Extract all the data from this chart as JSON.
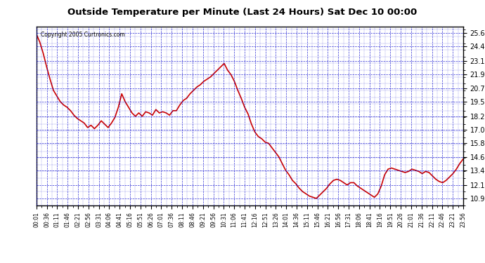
{
  "title": "Outside Temperature per Minute (Last 24 Hours) Sat Dec 10 00:00",
  "copyright_text": "Copyright 2005 Curtronics.com",
  "background_color": "#0000aa",
  "plot_bg_color": "#ffffff",
  "line_color": "#cc0000",
  "grid_color": "#0000cc",
  "y_ticks": [
    10.9,
    12.1,
    13.4,
    14.6,
    15.8,
    17.0,
    18.2,
    19.5,
    20.7,
    21.9,
    23.1,
    24.4,
    25.6
  ],
  "y_min": 10.3,
  "y_max": 26.2,
  "x_tick_labels": [
    "00:01",
    "00:36",
    "01:11",
    "01:46",
    "02:21",
    "02:56",
    "03:31",
    "04:06",
    "04:41",
    "05:16",
    "05:51",
    "06:26",
    "07:01",
    "07:36",
    "08:11",
    "08:46",
    "09:21",
    "09:56",
    "10:31",
    "11:06",
    "11:41",
    "12:16",
    "12:51",
    "13:26",
    "14:01",
    "14:36",
    "15:11",
    "15:46",
    "16:21",
    "16:56",
    "17:31",
    "18:06",
    "18:41",
    "19:16",
    "19:51",
    "20:26",
    "21:01",
    "21:36",
    "22:11",
    "22:46",
    "23:21",
    "23:56"
  ],
  "data_x": [
    0,
    35,
    70,
    105,
    140,
    175,
    210,
    245,
    280,
    315,
    350,
    385,
    420,
    455,
    490,
    525,
    560,
    595,
    630,
    665,
    700,
    735,
    770,
    805,
    840,
    875,
    910,
    945,
    980,
    1015,
    1050,
    1085,
    1120,
    1155,
    1190,
    1225,
    1260,
    1295,
    1330,
    1365,
    1400,
    1435
  ],
  "data_y": [
    25.5,
    24.8,
    23.8,
    22.6,
    21.5,
    20.5,
    20.0,
    19.5,
    19.2,
    19.0,
    18.7,
    18.3,
    18.0,
    17.8,
    17.6,
    17.2,
    17.4,
    17.1,
    17.4,
    17.8,
    17.5,
    17.2,
    17.6,
    18.1,
    19.0,
    20.2,
    19.5,
    19.0,
    18.5,
    18.2,
    18.5,
    18.2,
    18.6,
    18.5,
    18.3,
    18.8,
    18.5,
    18.6,
    18.5,
    18.3,
    18.7,
    18.7,
    19.2,
    19.6,
    19.8,
    20.2,
    20.5,
    20.8,
    21.0,
    21.3,
    21.5,
    21.7,
    22.0,
    22.3,
    22.6,
    22.9,
    22.3,
    21.9,
    21.3,
    20.5,
    19.8,
    19.0,
    18.4,
    17.5,
    16.8,
    16.4,
    16.2,
    15.9,
    15.8,
    15.4,
    15.0,
    14.6,
    14.0,
    13.4,
    13.0,
    12.5,
    12.2,
    11.8,
    11.5,
    11.3,
    11.1,
    11.0,
    10.9,
    11.2,
    11.5,
    11.8,
    12.2,
    12.5,
    12.6,
    12.5,
    12.3,
    12.1,
    12.3,
    12.3,
    12.0,
    11.8,
    11.6,
    11.4,
    11.2,
    11.0,
    11.3,
    12.0,
    13.0,
    13.5,
    13.6,
    13.5,
    13.4,
    13.3,
    13.2,
    13.3,
    13.5,
    13.4,
    13.3,
    13.1,
    13.3,
    13.2,
    12.9,
    12.6,
    12.4,
    12.3,
    12.5,
    12.8,
    13.1,
    13.5,
    14.0,
    14.4
  ]
}
